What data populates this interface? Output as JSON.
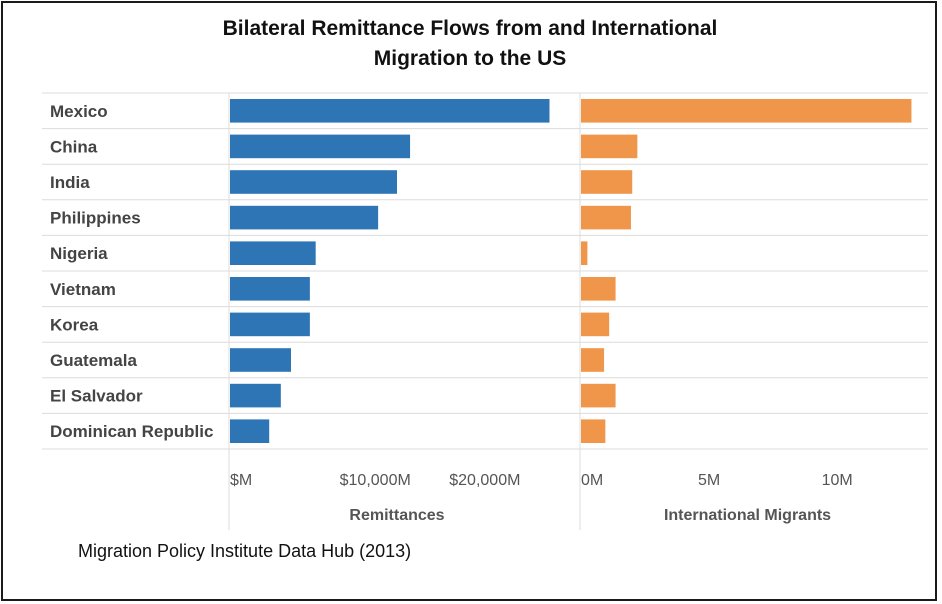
{
  "title_lines": [
    "Bilateral Remittance Flows from and International",
    "Migration to the US"
  ],
  "source": "Migration Policy Institute Data Hub (2013)",
  "chart_data": {
    "type": "bar",
    "orientation": "horizontal",
    "categories": [
      "Mexico",
      "China",
      "India",
      "Philippines",
      "Nigeria",
      "Vietnam",
      "Korea",
      "Guatemala",
      "El Salvador",
      "Dominican Republic"
    ],
    "panels": [
      {
        "name": "Remittances",
        "xlabel": "Remittances",
        "color": "#2e75b6",
        "xlim": [
          0,
          23000
        ],
        "ticks": [
          0,
          10000,
          20000
        ],
        "tick_labels": [
          "$M",
          "$10,000M",
          "$20,000M"
        ],
        "values": [
          22000,
          12400,
          11500,
          10200,
          5900,
          5500,
          5500,
          4200,
          3500,
          2700
        ]
      },
      {
        "name": "International Migrants",
        "xlabel": "International Migrants",
        "color": "#f0964a",
        "xlim": [
          0,
          13000000
        ],
        "ticks": [
          0,
          5000000,
          10000000
        ],
        "tick_labels": [
          "0M",
          "5M",
          "10M"
        ],
        "values": [
          12900000,
          2200000,
          2000000,
          1950000,
          250000,
          1350000,
          1100000,
          900000,
          1350000,
          950000
        ]
      }
    ]
  }
}
